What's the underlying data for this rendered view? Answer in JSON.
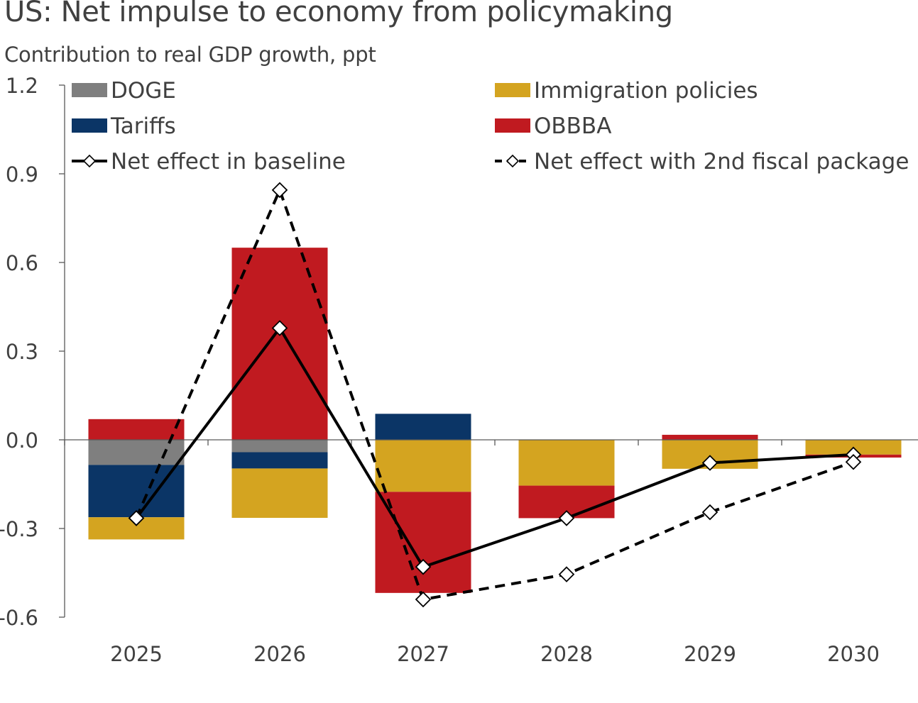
{
  "title": "US: Net impulse to economy from policymaking",
  "subtitle": "Contribution to real GDP growth, ppt",
  "colors": {
    "DOGE": "#7f7f7f",
    "Tariffs": "#0b3566",
    "Immigration policies": "#d4a420",
    "OBBBA": "#c01a20",
    "line": "#000000",
    "axis": "#595959",
    "text": "#404040"
  },
  "chart_data": {
    "type": "bar",
    "stacked": true,
    "categories": [
      "2025",
      "2026",
      "2027",
      "2028",
      "2029",
      "2030"
    ],
    "ylim": [
      -0.6,
      1.2
    ],
    "yticks": [
      1.2,
      0.9,
      0.6,
      0.3,
      0.0,
      -0.3,
      -0.6
    ],
    "ytick_labels": [
      "1.2",
      "0.9",
      "0.6",
      "0.3",
      "0.0",
      "-0.3",
      "-0.6"
    ],
    "legend_position": "top",
    "series": [
      {
        "name": "DOGE",
        "kind": "bar",
        "values": [
          -0.085,
          -0.042,
          0,
          0,
          0,
          0
        ]
      },
      {
        "name": "Tariffs",
        "kind": "bar",
        "values": [
          -0.177,
          -0.055,
          0.088,
          0,
          0,
          0
        ]
      },
      {
        "name": "Immigration policies",
        "kind": "bar",
        "values": [
          -0.075,
          -0.167,
          -0.176,
          -0.155,
          -0.098,
          -0.05
        ]
      },
      {
        "name": "OBBBA",
        "kind": "bar",
        "values": [
          0.07,
          0.65,
          -0.342,
          -0.11,
          0.017,
          -0.01
        ]
      },
      {
        "name": "Net effect in baseline",
        "kind": "line",
        "dashed": false,
        "values": [
          -0.265,
          0.378,
          -0.43,
          -0.265,
          -0.078,
          -0.05
        ]
      },
      {
        "name": "Net effect with 2nd fiscal package",
        "kind": "line",
        "dashed": true,
        "values": [
          -0.265,
          0.845,
          -0.54,
          -0.455,
          -0.245,
          -0.075
        ]
      }
    ]
  }
}
